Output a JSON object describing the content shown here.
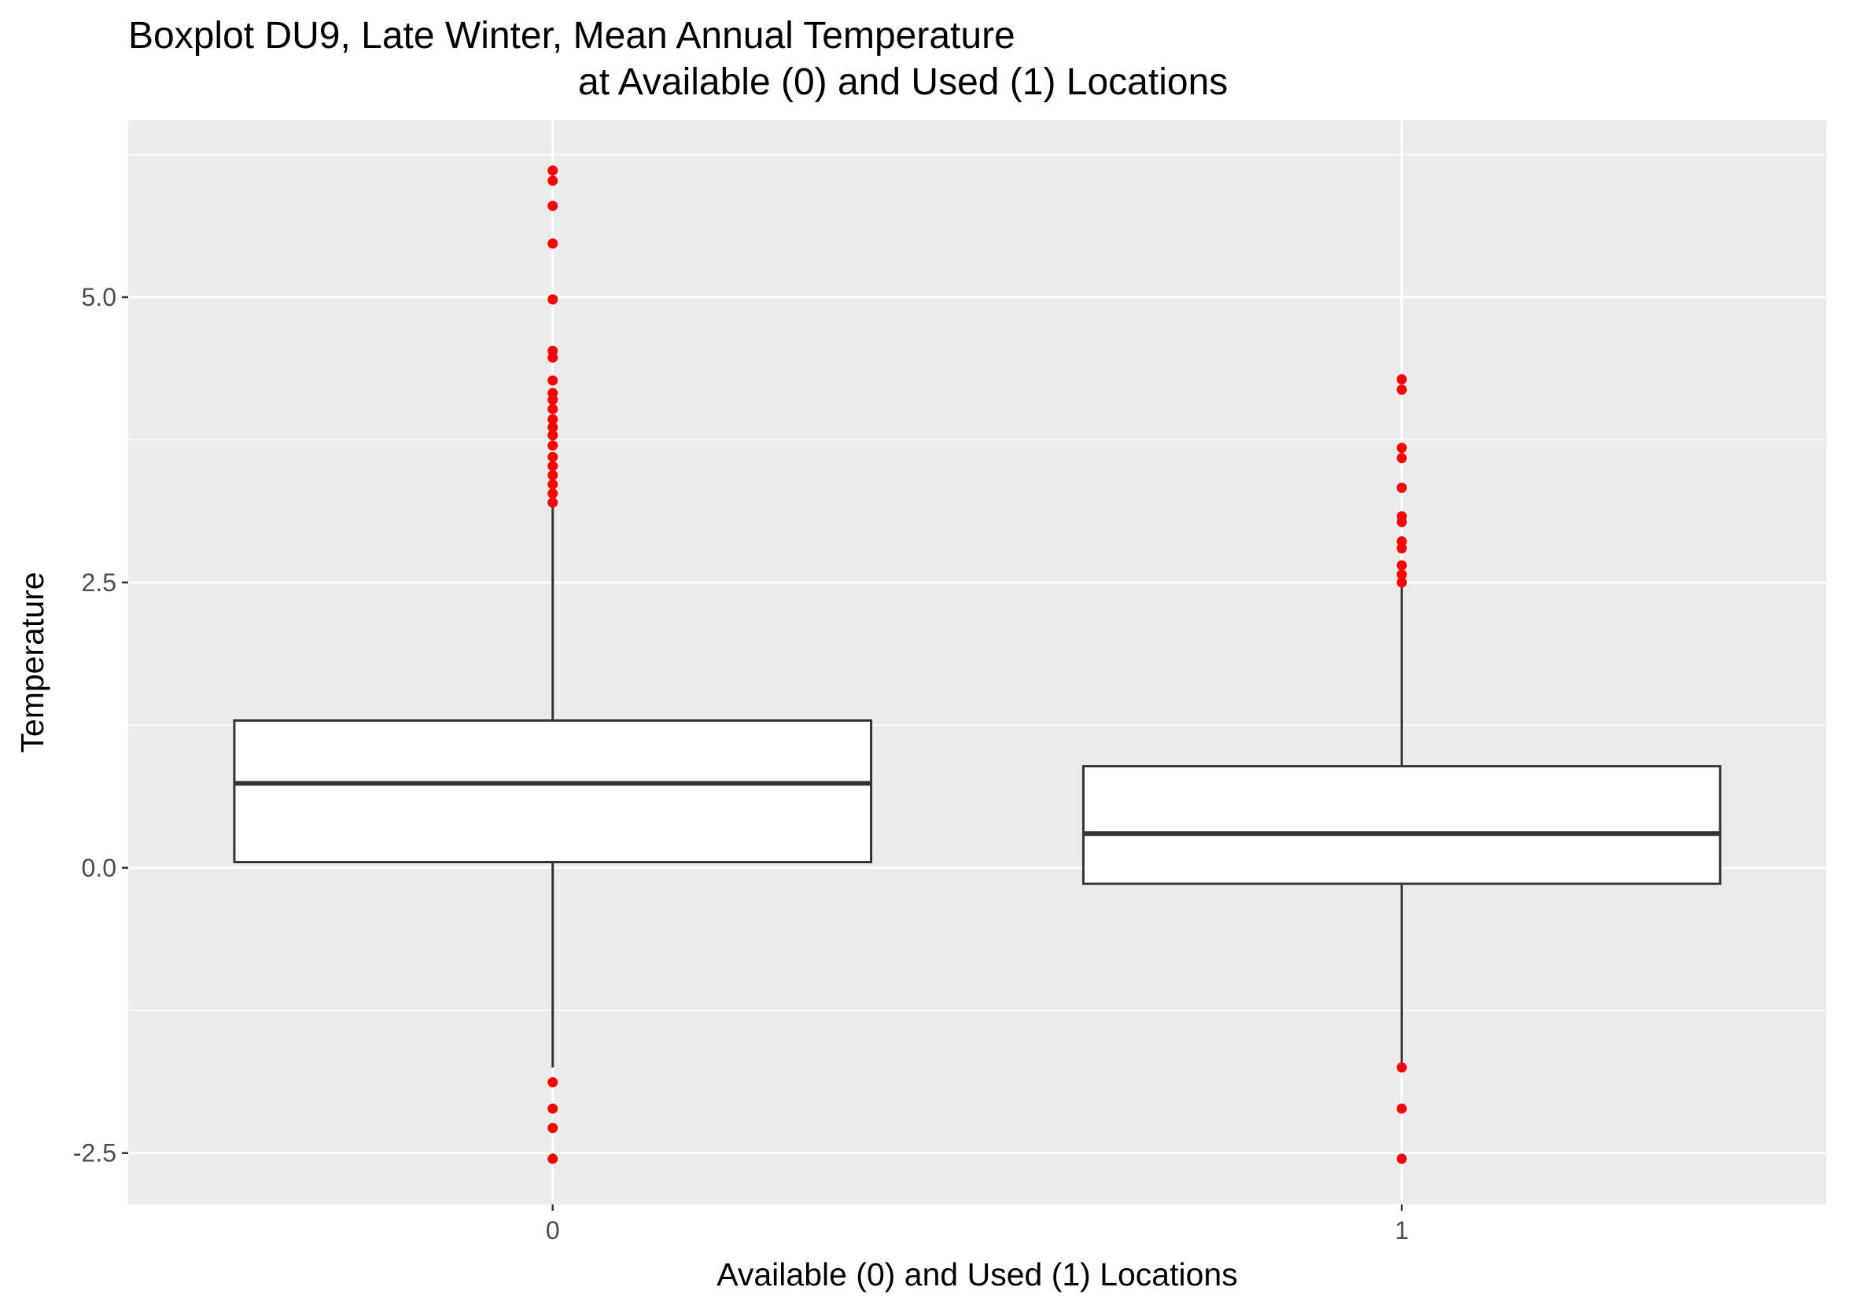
{
  "chart_data": {
    "type": "boxplot",
    "title": "Boxplot DU9, Late Winter, Mean Annual Temperature",
    "subtitle": "at Available (0) and Used (1) Locations",
    "xlabel": "Available (0) and Used (1) Locations",
    "ylabel": "Temperature",
    "categories": [
      "0",
      "1"
    ],
    "ylim": [
      -2.95,
      6.55
    ],
    "yticks": [
      -2.5,
      0.0,
      2.5,
      5.0
    ],
    "ytick_labels": [
      "-2.5",
      "0.0",
      "2.5",
      "5.0"
    ],
    "grid": true,
    "outlier_color": "#ff0000",
    "panel_color": "#ebebeb",
    "series": [
      {
        "category": "0",
        "whisker_low": -1.75,
        "q1": 0.05,
        "median": 0.74,
        "q3": 1.29,
        "whisker_high": 3.17,
        "outliers": [
          -2.55,
          -2.28,
          -2.11,
          -1.88,
          3.2,
          3.28,
          3.36,
          3.44,
          3.52,
          3.6,
          3.7,
          3.79,
          3.86,
          3.93,
          4.02,
          4.1,
          4.16,
          4.27,
          4.47,
          4.53,
          4.98,
          5.47,
          5.8,
          6.02,
          6.11
        ]
      },
      {
        "category": "1",
        "whisker_low": -1.73,
        "q1": -0.14,
        "median": 0.3,
        "q3": 0.89,
        "whisker_high": 2.47,
        "outliers": [
          -2.55,
          -2.11,
          -1.75,
          2.5,
          2.57,
          2.65,
          2.8,
          2.86,
          3.03,
          3.08,
          3.33,
          3.59,
          3.68,
          4.19,
          4.28
        ]
      }
    ]
  }
}
